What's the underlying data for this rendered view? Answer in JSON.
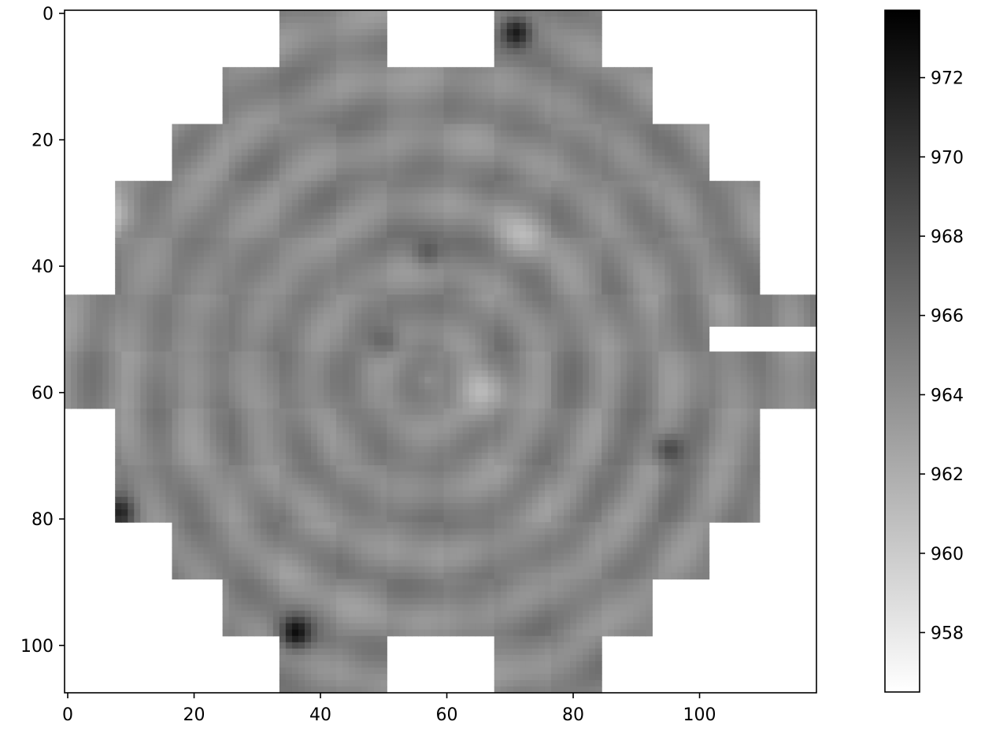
{
  "chart_data": {
    "type": "heatmap",
    "title": "",
    "xlabel": "",
    "ylabel": "",
    "colormap": "gray_r",
    "xlim": [
      -0.5,
      118.5
    ],
    "ylim": [
      107.5,
      -0.5
    ],
    "x_ticks": [
      0,
      20,
      40,
      60,
      80,
      100
    ],
    "y_ticks": [
      0,
      20,
      40,
      60,
      80,
      100
    ],
    "colorbar": {
      "vmin": 956.5,
      "vmax": 973.7,
      "ticks": [
        958,
        960,
        962,
        964,
        966,
        968,
        970,
        972
      ]
    },
    "mosaic": {
      "rows": 108,
      "cols": 119,
      "description_value_range": [
        961,
        973
      ],
      "tiles_note": "stepped circular mosaic of tiles; blank regions are NaN",
      "base_value": 964.6,
      "ring_centers": [
        57,
        58
      ],
      "ring_radii": [
        14,
        24,
        34,
        44,
        54
      ],
      "dark_spots": [
        {
          "x": 71,
          "y": 3,
          "value": 972.5
        },
        {
          "x": 36,
          "y": 98,
          "value": 972.0
        },
        {
          "x": 8,
          "y": 79,
          "value": 970.5
        },
        {
          "x": 95,
          "y": 69,
          "value": 969.5
        },
        {
          "x": 57,
          "y": 38,
          "value": 968.0
        },
        {
          "x": 50,
          "y": 52,
          "value": 968.0
        }
      ],
      "light_spots": [
        {
          "x": 66,
          "y": 60,
          "value": 961.5
        },
        {
          "x": 8,
          "y": 32,
          "value": 961.5
        },
        {
          "x": 72,
          "y": 36,
          "value": 962.5
        }
      ]
    }
  }
}
